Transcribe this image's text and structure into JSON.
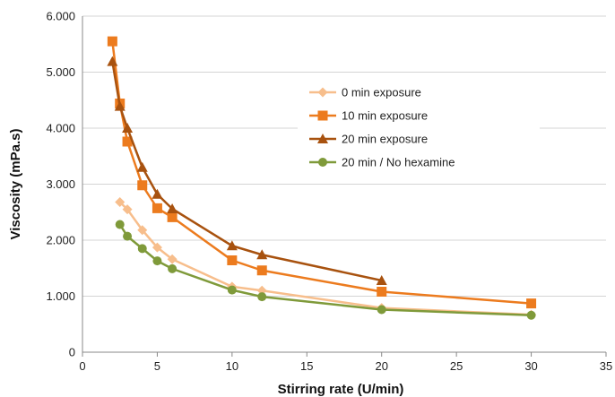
{
  "chart_data": {
    "type": "line",
    "title": "",
    "xlabel": "Stirring rate (U/min)",
    "ylabel": "Viscosity (mPa.s)",
    "xlim": [
      0,
      35
    ],
    "ylim": [
      0,
      6000
    ],
    "x_ticks": [
      0,
      5,
      10,
      15,
      20,
      25,
      30,
      35
    ],
    "x_tick_labels": [
      "0",
      "5",
      "10",
      "15",
      "20",
      "25",
      "30",
      "35"
    ],
    "y_ticks": [
      0,
      1000,
      2000,
      3000,
      4000,
      5000,
      6000
    ],
    "y_tick_labels": [
      "0",
      "1.000",
      "2.000",
      "3.000",
      "4.000",
      "5.000",
      "6.000"
    ],
    "grid": "horizontal",
    "legend_position": "upper-right (inside plot)",
    "series": [
      {
        "name": "0 min exposure",
        "color": "#f7be8c",
        "marker": "diamond",
        "x": [
          2.5,
          3,
          4,
          5,
          6,
          10,
          12,
          20,
          30
        ],
        "y": [
          2680,
          2550,
          2180,
          1870,
          1660,
          1170,
          1100,
          790,
          670
        ]
      },
      {
        "name": "10 min exposure",
        "color": "#ec7b1e",
        "marker": "square",
        "x": [
          2,
          2.5,
          3,
          4,
          5,
          6,
          10,
          12,
          20,
          30
        ],
        "y": [
          5550,
          4440,
          3760,
          2980,
          2570,
          2410,
          1640,
          1460,
          1080,
          870
        ]
      },
      {
        "name": "20 min exposure",
        "color": "#a8520f",
        "marker": "triangle",
        "x": [
          2,
          2.5,
          3,
          4,
          5,
          6,
          10,
          12,
          20
        ],
        "y": [
          5190,
          4390,
          4000,
          3300,
          2820,
          2560,
          1900,
          1740,
          1280
        ]
      },
      {
        "name": "20 min / No hexamine",
        "color": "#7f9a3a",
        "marker": "circle",
        "x": [
          2.5,
          3,
          4,
          5,
          6,
          10,
          12,
          20,
          30
        ],
        "y": [
          2280,
          2070,
          1850,
          1630,
          1490,
          1110,
          990,
          760,
          660
        ]
      }
    ]
  }
}
